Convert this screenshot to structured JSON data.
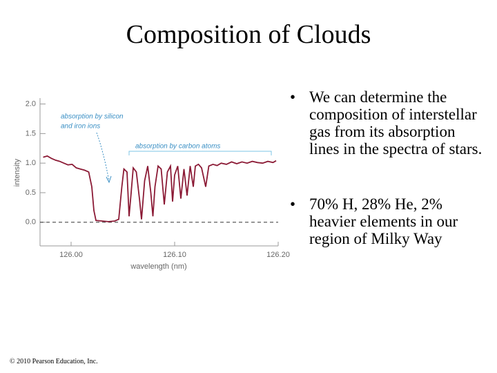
{
  "title": "Composition of Clouds",
  "bullets": [
    "We can determine the composition of interstellar gas from its absorption lines in the spectra of stars.",
    "70% H, 28% He, 2% heavier elements in our region of Milky Way"
  ],
  "copyright": "© 2010 Pearson Education, Inc.",
  "chart_data": {
    "type": "line",
    "xlabel": "wavelength (nm)",
    "ylabel": "intensity",
    "annotations": [
      "absorption by silicon",
      "and iron ions",
      "absorption by carbon atoms"
    ],
    "color": "#8b1a35",
    "hline": 0,
    "xlim": [
      125.97,
      126.2
    ],
    "xticks": [
      {
        "value": 126,
        "label": "126.00"
      },
      {
        "value": 126.1,
        "label": "126.10"
      },
      {
        "value": 126.2,
        "label": "126.20"
      }
    ],
    "ylim": [
      -0.4,
      2.1
    ],
    "yticks": [
      {
        "value": 0,
        "label": "0.0"
      },
      0.5,
      {
        "value": 1,
        "label": "1.0"
      },
      1.5,
      {
        "value": 2,
        "label": "2.0"
      }
    ],
    "x": [
      125.973,
      125.977,
      125.981,
      125.985,
      125.989,
      125.993,
      125.997,
      126.001,
      126.005,
      126.009,
      126.013,
      126.017,
      126.02,
      126.022,
      126.024,
      126.03,
      126.036,
      126.042,
      126.046,
      126.049,
      126.051,
      126.054,
      126.056,
      126.058,
      126.06,
      126.063,
      126.066,
      126.068,
      126.071,
      126.074,
      126.077,
      126.079,
      126.081,
      126.084,
      126.087,
      126.09,
      126.093,
      126.096,
      126.098,
      126.1,
      126.103,
      126.106,
      126.109,
      126.112,
      126.115,
      126.118,
      126.12,
      126.123,
      126.126,
      126.13,
      126.133,
      126.137,
      126.141,
      126.145,
      126.15,
      126.155,
      126.16,
      126.165,
      126.17,
      126.175,
      126.18,
      126.185,
      126.19,
      126.195,
      126.198
    ],
    "values": [
      1.1,
      1.12,
      1.08,
      1.05,
      1.03,
      1.0,
      0.97,
      0.98,
      0.92,
      0.9,
      0.88,
      0.85,
      0.6,
      0.2,
      0.03,
      0.02,
      0.01,
      0.02,
      0.05,
      0.6,
      0.9,
      0.85,
      0.1,
      0.5,
      0.92,
      0.85,
      0.4,
      0.05,
      0.7,
      0.95,
      0.5,
      0.1,
      0.6,
      0.95,
      0.9,
      0.3,
      0.85,
      0.95,
      0.35,
      0.8,
      0.95,
      0.4,
      0.9,
      0.45,
      0.95,
      0.6,
      0.95,
      0.98,
      0.92,
      0.6,
      0.95,
      0.98,
      0.96,
      1.0,
      0.98,
      1.02,
      0.99,
      1.02,
      1.0,
      1.03,
      1.01,
      1.0,
      1.03,
      1.01,
      1.04
    ]
  }
}
